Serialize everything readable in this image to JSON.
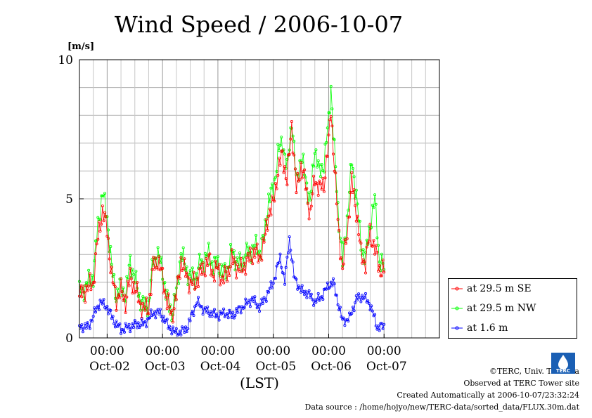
{
  "chart_data": {
    "type": "line",
    "title": "Wind Speed / 2006-10-07",
    "ylabel": "[m/s]",
    "xlabel": "(LST)",
    "ylim": [
      0,
      10
    ],
    "yticks": [
      "0",
      "5",
      "10"
    ],
    "xlim": [
      "2006-10-01 12:00",
      "2006-10-08 00:00"
    ],
    "x_ticks": [
      {
        "time": "00:00",
        "date": "Oct-02"
      },
      {
        "time": "00:00",
        "date": "Oct-03"
      },
      {
        "time": "00:00",
        "date": "Oct-04"
      },
      {
        "time": "00:00",
        "date": "Oct-05"
      },
      {
        "time": "00:00",
        "date": "Oct-06"
      },
      {
        "time": "00:00",
        "date": "Oct-07"
      }
    ],
    "grid": true,
    "legend_position": "right",
    "sampling": "30 min",
    "series": [
      {
        "name": "at 29.5 m SE",
        "color": "#ff0000",
        "points": [
          [
            "2006-10-01 12:00",
            1.5
          ],
          [
            "2006-10-01 18:00",
            2.0
          ],
          [
            "2006-10-01 20:00",
            3.6
          ],
          [
            "2006-10-01 22:00",
            4.6
          ],
          [
            "2006-10-02 00:00",
            3.9
          ],
          [
            "2006-10-02 02:00",
            2.2
          ],
          [
            "2006-10-02 04:00",
            1.4
          ],
          [
            "2006-10-02 06:00",
            1.7
          ],
          [
            "2006-10-02 08:00",
            1.3
          ],
          [
            "2006-10-02 10:00",
            2.2
          ],
          [
            "2006-10-02 12:00",
            1.8
          ],
          [
            "2006-10-02 14:00",
            1.3
          ],
          [
            "2006-10-02 16:00",
            1.0
          ],
          [
            "2006-10-02 18:00",
            1.1
          ],
          [
            "2006-10-02 20:00",
            2.6
          ],
          [
            "2006-10-02 22:00",
            2.8
          ],
          [
            "2006-10-03 00:00",
            2.2
          ],
          [
            "2006-10-03 02:00",
            1.3
          ],
          [
            "2006-10-03 04:00",
            0.8
          ],
          [
            "2006-10-03 06:00",
            1.5
          ],
          [
            "2006-10-03 08:00",
            2.8
          ],
          [
            "2006-10-03 10:00",
            2.3
          ],
          [
            "2006-10-03 12:00",
            2.0
          ],
          [
            "2006-10-03 14:00",
            1.9
          ],
          [
            "2006-10-03 16:00",
            2.3
          ],
          [
            "2006-10-03 18:00",
            2.5
          ],
          [
            "2006-10-03 20:00",
            2.8
          ],
          [
            "2006-10-03 22:00",
            2.3
          ],
          [
            "2006-10-04 00:00",
            2.5
          ],
          [
            "2006-10-04 02:00",
            2.1
          ],
          [
            "2006-10-04 04:00",
            2.3
          ],
          [
            "2006-10-04 06:00",
            2.8
          ],
          [
            "2006-10-04 08:00",
            2.6
          ],
          [
            "2006-10-04 10:00",
            2.4
          ],
          [
            "2006-10-04 12:00",
            2.7
          ],
          [
            "2006-10-04 14:00",
            2.9
          ],
          [
            "2006-10-04 16:00",
            3.1
          ],
          [
            "2006-10-04 18:00",
            2.9
          ],
          [
            "2006-10-04 20:00",
            3.4
          ],
          [
            "2006-10-04 22:00",
            4.5
          ],
          [
            "2006-10-05 00:00",
            4.8
          ],
          [
            "2006-10-05 02:00",
            6.0
          ],
          [
            "2006-10-05 04:00",
            6.6
          ],
          [
            "2006-10-05 06:00",
            5.6
          ],
          [
            "2006-10-05 08:00",
            7.7
          ],
          [
            "2006-10-05 10:00",
            5.3
          ],
          [
            "2006-10-05 12:00",
            6.2
          ],
          [
            "2006-10-05 14:00",
            5.5
          ],
          [
            "2006-10-05 16:00",
            4.4
          ],
          [
            "2006-10-05 18:00",
            5.8
          ],
          [
            "2006-10-05 20:00",
            5.3
          ],
          [
            "2006-10-05 22:00",
            5.6
          ],
          [
            "2006-10-06 00:00",
            7.0
          ],
          [
            "2006-10-06 01:00",
            8.3
          ],
          [
            "2006-10-06 02:00",
            6.8
          ],
          [
            "2006-10-06 04:00",
            4.2
          ],
          [
            "2006-10-06 06:00",
            2.4
          ],
          [
            "2006-10-06 08:00",
            3.8
          ],
          [
            "2006-10-06 10:00",
            5.6
          ],
          [
            "2006-10-06 12:00",
            4.6
          ],
          [
            "2006-10-06 14:00",
            3.0
          ],
          [
            "2006-10-06 16:00",
            2.7
          ],
          [
            "2006-10-06 18:00",
            3.8
          ],
          [
            "2006-10-06 20:00",
            3.2
          ],
          [
            "2006-10-06 22:00",
            2.5
          ],
          [
            "2006-10-07 00:00",
            2.4
          ]
        ]
      },
      {
        "name": "at 29.5 m NW",
        "color": "#00ff00",
        "points": [
          [
            "2006-10-01 12:00",
            1.6
          ],
          [
            "2006-10-01 18:00",
            2.2
          ],
          [
            "2006-10-01 20:00",
            4.1
          ],
          [
            "2006-10-01 22:00",
            5.2
          ],
          [
            "2006-10-02 00:00",
            4.4
          ],
          [
            "2006-10-02 02:00",
            2.5
          ],
          [
            "2006-10-02 04:00",
            1.5
          ],
          [
            "2006-10-02 06:00",
            1.9
          ],
          [
            "2006-10-02 08:00",
            1.5
          ],
          [
            "2006-10-02 10:00",
            2.8
          ],
          [
            "2006-10-02 12:00",
            2.1
          ],
          [
            "2006-10-02 14:00",
            1.5
          ],
          [
            "2006-10-02 16:00",
            1.1
          ],
          [
            "2006-10-02 18:00",
            1.2
          ],
          [
            "2006-10-02 20:00",
            2.8
          ],
          [
            "2006-10-02 22:00",
            3.0
          ],
          [
            "2006-10-03 00:00",
            2.4
          ],
          [
            "2006-10-03 02:00",
            1.4
          ],
          [
            "2006-10-03 04:00",
            0.9
          ],
          [
            "2006-10-03 06:00",
            1.6
          ],
          [
            "2006-10-03 08:00",
            3.1
          ],
          [
            "2006-10-03 10:00",
            2.5
          ],
          [
            "2006-10-03 12:00",
            2.2
          ],
          [
            "2006-10-03 14:00",
            2.1
          ],
          [
            "2006-10-03 16:00",
            2.6
          ],
          [
            "2006-10-03 18:00",
            2.8
          ],
          [
            "2006-10-03 20:00",
            3.0
          ],
          [
            "2006-10-03 22:00",
            2.6
          ],
          [
            "2006-10-04 00:00",
            2.7
          ],
          [
            "2006-10-04 02:00",
            2.3
          ],
          [
            "2006-10-04 04:00",
            2.5
          ],
          [
            "2006-10-04 06:00",
            3.1
          ],
          [
            "2006-10-04 08:00",
            2.8
          ],
          [
            "2006-10-04 10:00",
            2.6
          ],
          [
            "2006-10-04 12:00",
            3.0
          ],
          [
            "2006-10-04 14:00",
            3.1
          ],
          [
            "2006-10-04 16:00",
            3.3
          ],
          [
            "2006-10-04 18:00",
            3.1
          ],
          [
            "2006-10-04 20:00",
            3.6
          ],
          [
            "2006-10-04 22:00",
            5.0
          ],
          [
            "2006-10-05 00:00",
            5.3
          ],
          [
            "2006-10-05 02:00",
            6.6
          ],
          [
            "2006-10-05 04:00",
            7.1
          ],
          [
            "2006-10-05 06:00",
            6.0
          ],
          [
            "2006-10-05 08:00",
            7.9
          ],
          [
            "2006-10-05 10:00",
            5.6
          ],
          [
            "2006-10-05 12:00",
            6.5
          ],
          [
            "2006-10-05 14:00",
            5.8
          ],
          [
            "2006-10-05 16:00",
            4.8
          ],
          [
            "2006-10-05 18:00",
            6.9
          ],
          [
            "2006-10-05 20:00",
            5.9
          ],
          [
            "2006-10-05 22:00",
            6.3
          ],
          [
            "2006-10-06 00:00",
            7.8
          ],
          [
            "2006-10-06 01:00",
            9.1
          ],
          [
            "2006-10-06 02:00",
            7.4
          ],
          [
            "2006-10-06 04:00",
            4.7
          ],
          [
            "2006-10-06 06:00",
            2.7
          ],
          [
            "2006-10-06 08:00",
            4.3
          ],
          [
            "2006-10-06 10:00",
            6.3
          ],
          [
            "2006-10-06 12:00",
            5.2
          ],
          [
            "2006-10-06 14:00",
            3.3
          ],
          [
            "2006-10-06 16:00",
            2.9
          ],
          [
            "2006-10-06 18:00",
            4.1
          ],
          [
            "2006-10-06 20:00",
            5.0
          ],
          [
            "2006-10-06 22:00",
            2.8
          ],
          [
            "2006-10-07 00:00",
            2.5
          ]
        ]
      },
      {
        "name": "at 1.6 m",
        "color": "#0000ff",
        "points": [
          [
            "2006-10-01 12:00",
            0.4
          ],
          [
            "2006-10-01 16:00",
            0.4
          ],
          [
            "2006-10-01 18:00",
            0.8
          ],
          [
            "2006-10-01 21:00",
            1.3
          ],
          [
            "2006-10-02 00:00",
            1.1
          ],
          [
            "2006-10-02 03:00",
            0.6
          ],
          [
            "2006-10-02 06:00",
            0.3
          ],
          [
            "2006-10-02 10:00",
            0.4
          ],
          [
            "2006-10-02 13:00",
            0.5
          ],
          [
            "2006-10-02 16:00",
            0.5
          ],
          [
            "2006-10-02 20:00",
            0.9
          ],
          [
            "2006-10-02 23:00",
            0.9
          ],
          [
            "2006-10-03 02:00",
            0.5
          ],
          [
            "2006-10-03 05:00",
            0.2
          ],
          [
            "2006-10-03 08:00",
            0.2
          ],
          [
            "2006-10-03 11:00",
            0.4
          ],
          [
            "2006-10-03 13:00",
            0.9
          ],
          [
            "2006-10-03 15:00",
            1.3
          ],
          [
            "2006-10-03 18:00",
            1.0
          ],
          [
            "2006-10-03 21:00",
            0.9
          ],
          [
            "2006-10-04 00:00",
            0.8
          ],
          [
            "2006-10-04 03:00",
            0.9
          ],
          [
            "2006-10-04 06:00",
            0.8
          ],
          [
            "2006-10-04 09:00",
            1.0
          ],
          [
            "2006-10-04 12:00",
            1.2
          ],
          [
            "2006-10-04 15:00",
            1.4
          ],
          [
            "2006-10-04 18:00",
            1.1
          ],
          [
            "2006-10-04 21:00",
            1.5
          ],
          [
            "2006-10-05 00:00",
            2.0
          ],
          [
            "2006-10-05 03:00",
            2.9
          ],
          [
            "2006-10-05 05:00",
            2.0
          ],
          [
            "2006-10-05 07:00",
            3.6
          ],
          [
            "2006-10-05 09:00",
            2.2
          ],
          [
            "2006-10-05 12:00",
            1.7
          ],
          [
            "2006-10-05 15:00",
            1.6
          ],
          [
            "2006-10-05 18:00",
            1.3
          ],
          [
            "2006-10-05 21:00",
            1.5
          ],
          [
            "2006-10-06 00:00",
            1.9
          ],
          [
            "2006-10-06 02:00",
            2.0
          ],
          [
            "2006-10-06 04:00",
            1.3
          ],
          [
            "2006-10-06 06:00",
            0.6
          ],
          [
            "2006-10-06 09:00",
            0.7
          ],
          [
            "2006-10-06 12:00",
            1.4
          ],
          [
            "2006-10-06 15:00",
            1.5
          ],
          [
            "2006-10-06 18:00",
            1.2
          ],
          [
            "2006-10-06 21:00",
            0.4
          ],
          [
            "2006-10-07 00:00",
            0.4
          ]
        ]
      }
    ]
  },
  "footer": {
    "copyright": "©TERC, Univ. Tsukuba",
    "site": "Observed at TERC Tower site",
    "created": "Created Automatically at 2006-10-07/23:32:24",
    "source": "Data source : /home/hojyo/new/TERC-data/sorted_data/FLUX.30m.dat"
  },
  "logo_text": "TERC"
}
